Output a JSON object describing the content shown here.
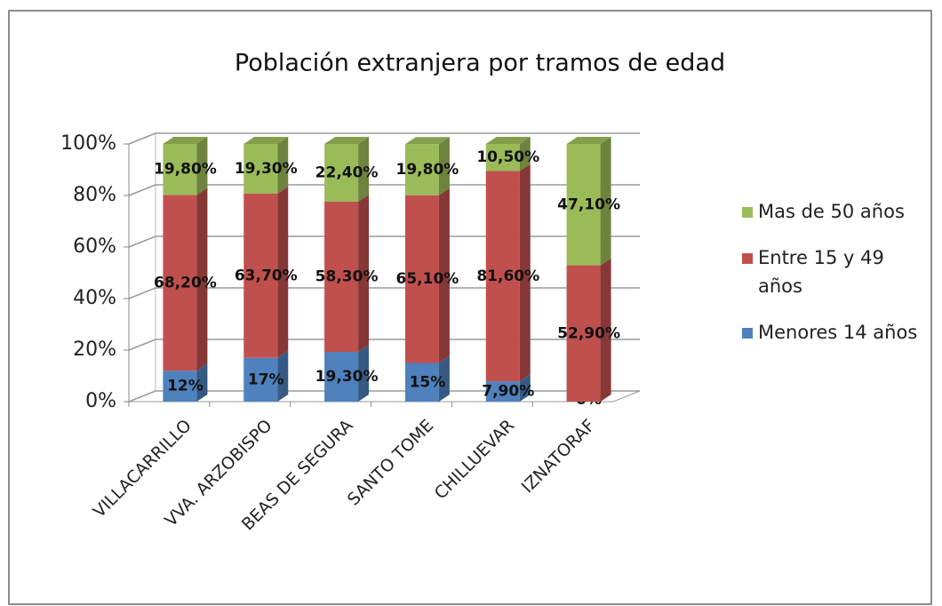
{
  "chart_data": {
    "type": "stacked_bar_3d",
    "title": "Población extranjera por tramos de edad",
    "categories": [
      "VILLACARRILLO",
      "VVA. ARZOBISPO",
      "BEAS DE SEGURA",
      "SANTO TOME",
      "CHILLUEVAR",
      "IZNATORAF"
    ],
    "series": [
      {
        "name": "Menores 14 años",
        "color": "#4f81bd",
        "values": [
          12,
          17,
          19.3,
          15,
          7.9,
          0
        ],
        "value_labels": [
          "12%",
          "17%",
          "19,30%",
          "15%",
          "7,90%",
          "0%"
        ]
      },
      {
        "name": "Entre 15 y 49 años",
        "color": "#c0504d",
        "values": [
          68.2,
          63.7,
          58.3,
          65.1,
          81.6,
          52.9
        ],
        "value_labels": [
          "68,20%",
          "63,70%",
          "58,30%",
          "65,10%",
          "81,60%",
          "52,90%"
        ]
      },
      {
        "name": "Mas de 50 años",
        "color": "#9bbb59",
        "values": [
          19.8,
          19.3,
          22.4,
          19.8,
          10.5,
          47.1
        ],
        "value_labels": [
          "19,80%",
          "19,30%",
          "22,40%",
          "19,80%",
          "10,50%",
          "47,10%"
        ]
      }
    ],
    "ylim": [
      0,
      100
    ],
    "yticks": [
      {
        "value": 0,
        "label": "0%"
      },
      {
        "value": 20,
        "label": "20%"
      },
      {
        "value": 40,
        "label": "40%"
      },
      {
        "value": 60,
        "label": "60%"
      },
      {
        "value": 80,
        "label": "80%"
      },
      {
        "value": 100,
        "label": "100%"
      }
    ],
    "grid": true,
    "legend": "right"
  }
}
